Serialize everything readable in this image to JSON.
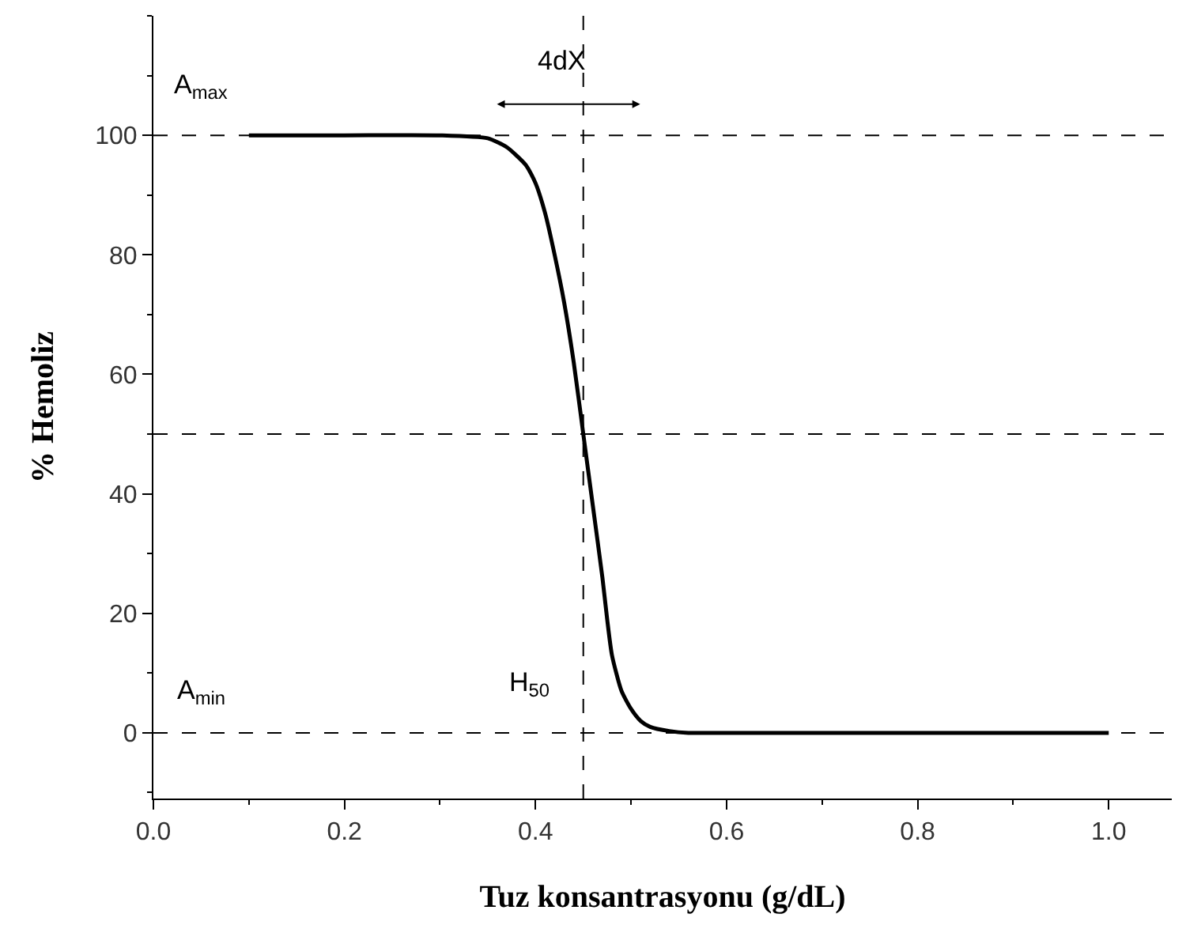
{
  "chart_data": {
    "type": "line",
    "xlabel": "Tuz konsantrasyonu (g/dL)",
    "ylabel": "% Hemoliz",
    "x": [
      0.1,
      0.2,
      0.3,
      0.35,
      0.37,
      0.39,
      0.4,
      0.41,
      0.42,
      0.43,
      0.44,
      0.45,
      0.46,
      0.47,
      0.475,
      0.48,
      0.49,
      0.5,
      0.51,
      0.52,
      0.54,
      0.56,
      0.6,
      0.8,
      1.0
    ],
    "series": [
      {
        "color": "#000000",
        "values": [
          100,
          100,
          100,
          99.5,
          98,
          95,
          92,
          87,
          80,
          72,
          62,
          50,
          38,
          26,
          19,
          13,
          7,
          4,
          2,
          1,
          0.3,
          0,
          0,
          0,
          0
        ]
      }
    ],
    "xlim": [
      0,
      1.066
    ],
    "ylim": [
      -11,
      120
    ],
    "xticks": [
      {
        "value": 0,
        "label": "0.0"
      },
      0.2,
      0.4,
      0.6,
      0.8,
      {
        "value": 1,
        "label": "1.0"
      }
    ],
    "yticks": [
      0,
      20,
      40,
      60,
      80,
      100
    ],
    "grid": false,
    "marker": "none",
    "line_style": "solid",
    "ref_lines": [
      {
        "axis": "y",
        "value": 100,
        "label": null,
        "line_style": "dashed",
        "color": "#000000"
      },
      {
        "axis": "y",
        "value": 50,
        "label": null,
        "line_style": "dashed",
        "color": "#000000"
      },
      {
        "axis": "y",
        "value": 0,
        "label": null,
        "line_style": "dashed",
        "color": "#000000"
      },
      {
        "axis": "x",
        "value": 0.45,
        "label": null,
        "line_style": "dashed",
        "color": "#000000"
      }
    ],
    "annotations": [
      "A$_{max}$",
      "4dX",
      "A$_{min}$",
      "H$_{50}$"
    ]
  }
}
